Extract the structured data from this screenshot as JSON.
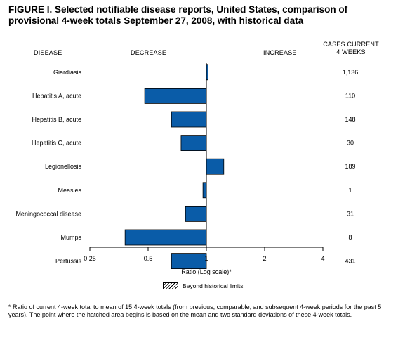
{
  "title": "FIGURE I. Selected notifiable disease reports, United States, comparison of provisional 4-week totals September 27, 2008, with historical data",
  "headers": {
    "disease": "DISEASE",
    "decrease": "DECREASE",
    "increase": "INCREASE",
    "cases_line1": "CASES CURRENT",
    "cases_line2": "4 WEEKS"
  },
  "legend_label": "Beyond historical limits",
  "footnote": "* Ratio of current 4-week total to mean of 15 4-week totals (from previous, comparable, and subsequent 4-week periods for the past 5 years). The point where the hatched area begins is based on the mean and two standard deviations of these 4-week totals.",
  "colors": {
    "bar": "#0a5ca8",
    "bar_stroke": "#000000"
  },
  "chart_data": {
    "type": "bar",
    "orientation": "horizontal",
    "scale": "log2",
    "xlabel": "Ratio (Log scale)*",
    "xlim": [
      0.25,
      4
    ],
    "xticks": [
      0.25,
      0.5,
      1,
      2,
      4
    ],
    "xtick_labels": [
      "0.25",
      "0.5",
      "1",
      "2",
      "4"
    ],
    "baseline": 1,
    "categories": [
      "Giardiasis",
      "Hepatitis A, acute",
      "Hepatitis B, acute",
      "Hepatitis C, acute",
      "Legionellosis",
      "Measles",
      "Meningococcal disease",
      "Mumps",
      "Pertussis"
    ],
    "values": [
      1.02,
      0.48,
      0.66,
      0.74,
      1.23,
      0.96,
      0.78,
      0.38,
      0.66
    ],
    "cases": [
      "1,136",
      "110",
      "148",
      "30",
      "189",
      "1",
      "31",
      "8",
      "431"
    ]
  }
}
